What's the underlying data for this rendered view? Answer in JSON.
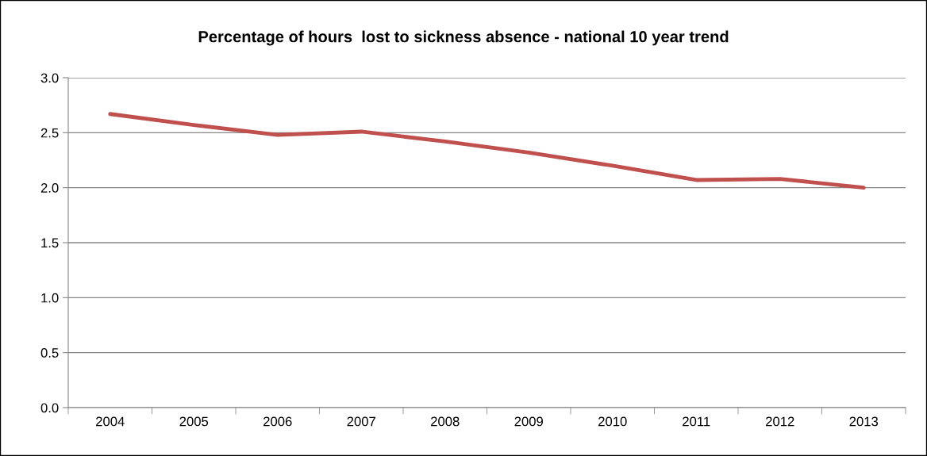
{
  "chart_data": {
    "type": "line",
    "title": "Percentage of hours  lost to sickness absence - national 10 year trend",
    "categories": [
      "2004",
      "2005",
      "2006",
      "2007",
      "2008",
      "2009",
      "2010",
      "2011",
      "2012",
      "2013"
    ],
    "series": [
      {
        "color": "#c0504d",
        "values": [
          2.67,
          2.57,
          2.48,
          2.51,
          2.42,
          2.32,
          2.2,
          2.07,
          2.08,
          2.0
        ]
      }
    ],
    "ylim": [
      0,
      3
    ],
    "yticks": [
      {
        "value": 0,
        "label": "0.0"
      },
      {
        "value": 0.5,
        "label": "0.5"
      },
      {
        "value": 1,
        "label": "1.0"
      },
      {
        "value": 1.5,
        "label": "1.5"
      },
      {
        "value": 2,
        "label": "2.0"
      },
      {
        "value": 2.5,
        "label": "2.5"
      },
      {
        "value": 3,
        "label": "3.0"
      }
    ],
    "grid": "y",
    "legend": false,
    "marker": "none",
    "line_style": "solid"
  }
}
